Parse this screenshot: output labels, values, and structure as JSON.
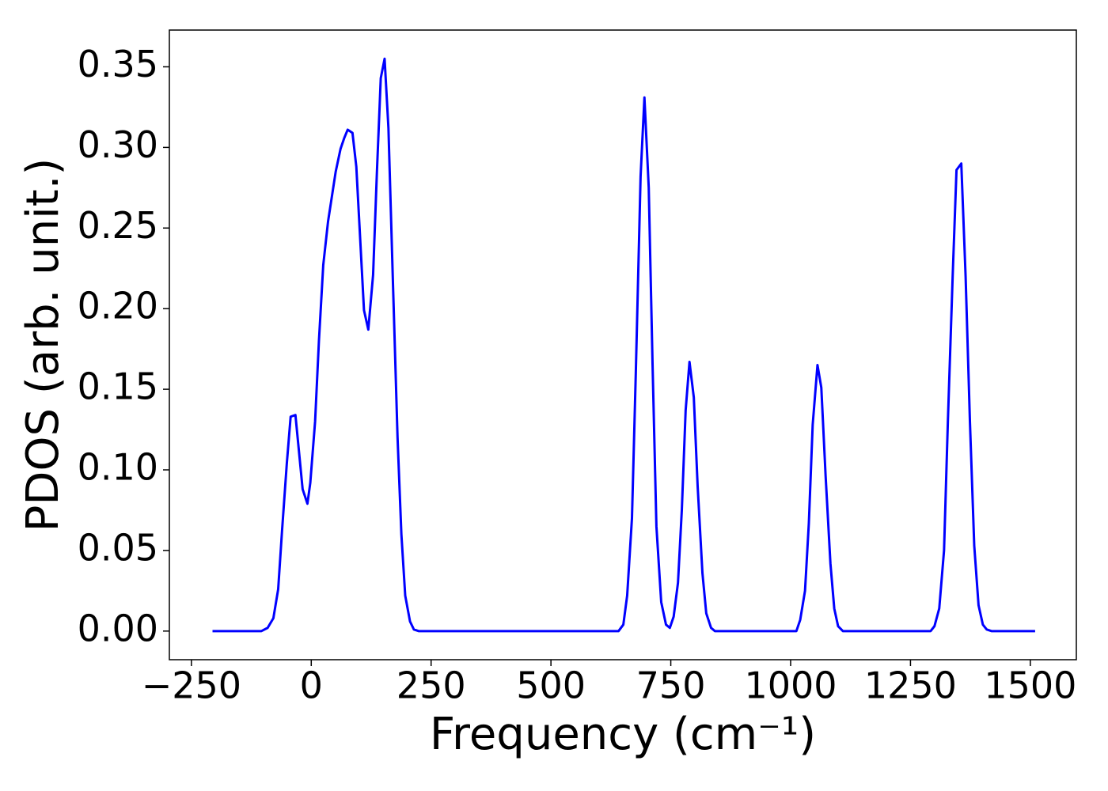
{
  "chart_data": {
    "type": "line",
    "xlabel": "Frequency (cm⁻¹)",
    "ylabel": "PDOS (arb. unit.)",
    "xlim": [
      -296,
      1596
    ],
    "ylim": [
      -0.01775,
      0.3728
    ],
    "xticks": [
      {
        "value": -250,
        "label": "−250"
      },
      0,
      250,
      500,
      750,
      1000,
      1250,
      1500
    ],
    "yticks": [
      {
        "value": 0,
        "label": "0.00"
      },
      {
        "value": 0.05,
        "label": "0.05"
      },
      {
        "value": 0.1,
        "label": "0.10"
      },
      0.15,
      {
        "value": 0.2,
        "label": "0.20"
      },
      0.25,
      {
        "value": 0.3,
        "label": "0.30"
      },
      0.35
    ],
    "x": [
      -206,
      -104,
      -91,
      -79,
      -69,
      -61,
      -51,
      -43,
      -33,
      -18,
      -8,
      -2,
      8,
      16,
      25,
      35,
      51,
      61,
      69,
      76,
      86,
      94,
      110,
      119,
      129,
      137,
      145,
      153,
      161,
      170,
      180,
      188,
      196,
      206,
      214,
      224,
      641,
      651,
      659,
      669,
      677,
      687,
      695,
      704,
      712,
      720,
      730,
      740,
      748,
      756,
      765,
      773,
      781,
      789,
      798,
      806,
      816,
      824,
      834,
      842,
      1012,
      1020,
      1030,
      1038,
      1046,
      1056,
      1064,
      1073,
      1083,
      1091,
      1099,
      1109,
      1292,
      1300,
      1310,
      1320,
      1328,
      1338,
      1346,
      1356,
      1365,
      1374,
      1383,
      1392,
      1401,
      1409,
      1419,
      1510
    ],
    "series": [
      {
        "color": "#0000ff",
        "values": [
          0,
          0,
          0.002,
          0.008,
          0.026,
          0.062,
          0.104,
          0.133,
          0.134,
          0.088,
          0.079,
          0.092,
          0.13,
          0.18,
          0.227,
          0.254,
          0.285,
          0.299,
          0.306,
          0.311,
          0.309,
          0.288,
          0.199,
          0.187,
          0.221,
          0.285,
          0.343,
          0.355,
          0.312,
          0.22,
          0.12,
          0.06,
          0.022,
          0.006,
          0.001,
          0,
          0,
          0.004,
          0.022,
          0.07,
          0.16,
          0.282,
          0.331,
          0.275,
          0.165,
          0.065,
          0.018,
          0.004,
          0.002,
          0.009,
          0.03,
          0.075,
          0.137,
          0.167,
          0.145,
          0.09,
          0.036,
          0.011,
          0.002,
          0,
          0,
          0.007,
          0.025,
          0.067,
          0.128,
          0.165,
          0.151,
          0.096,
          0.042,
          0.014,
          0.003,
          0,
          0,
          0.003,
          0.014,
          0.05,
          0.13,
          0.22,
          0.286,
          0.29,
          0.22,
          0.13,
          0.053,
          0.016,
          0.004,
          0.001,
          0,
          0
        ]
      }
    ]
  }
}
